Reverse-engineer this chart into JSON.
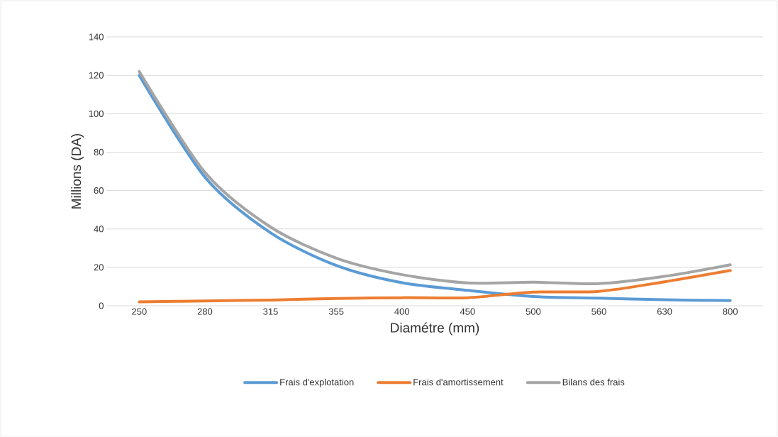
{
  "chart_data": {
    "type": "line",
    "xlabel": "Diamétre (mm)",
    "ylabel": "Millions (DA)",
    "categories": [
      "250",
      "280",
      "315",
      "355",
      "400",
      "450",
      "500",
      "560",
      "630",
      "800"
    ],
    "series": [
      {
        "name": "Frais d'explotation",
        "color": "#5b9bd5",
        "values": [
          120,
          67,
          38,
          21,
          12,
          8,
          4.8,
          4,
          3.1,
          2.7
        ]
      },
      {
        "name": "Frais d'amortissement",
        "color": "#ed7d31",
        "values": [
          2,
          2.5,
          3,
          3.8,
          4.2,
          4.2,
          7.1,
          7.5,
          12.5,
          18.4
        ]
      },
      {
        "name": "Bilans des frais",
        "color": "#a5a5a5",
        "values": [
          122,
          69.5,
          41,
          24.8,
          16.2,
          11.9,
          12.3,
          11.5,
          15.3,
          21.3
        ]
      }
    ],
    "ylim": [
      0,
      140
    ],
    "yticks": [
      0,
      20,
      40,
      60,
      80,
      100,
      120,
      140
    ],
    "grid": "y",
    "legend": "bottom",
    "marker": "none",
    "line_style": "solid"
  }
}
